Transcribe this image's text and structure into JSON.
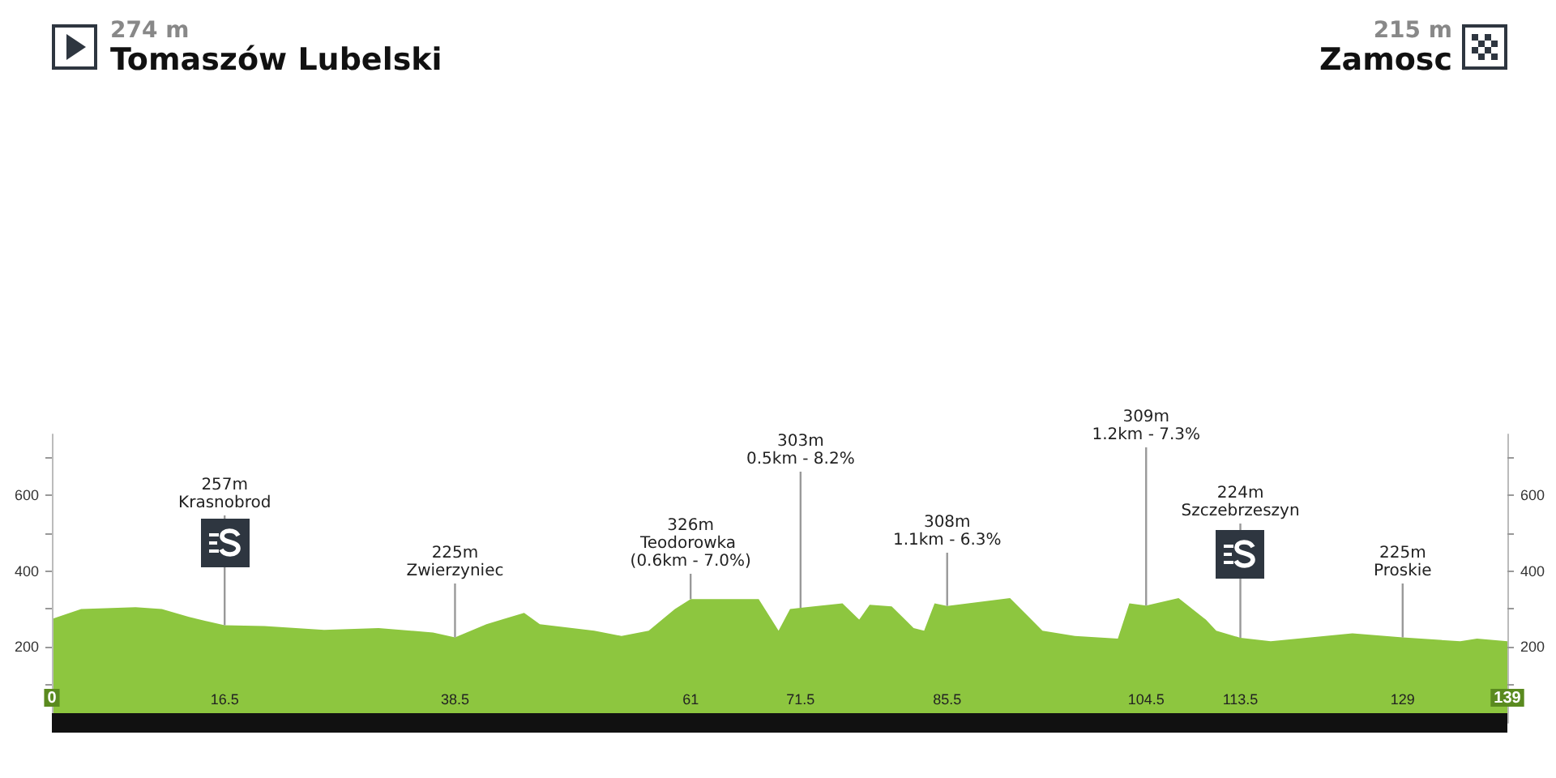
{
  "chart_data": {
    "type": "area",
    "color": "#8dc63f",
    "x": [
      0,
      2.8,
      8,
      10.5,
      13.1,
      16.5,
      20.3,
      26,
      31.2,
      36.4,
      38.5,
      41.5,
      45.1,
      46.6,
      51.8,
      54.4,
      57,
      59.5,
      61,
      67.5,
      69.4,
      70.5,
      71.5,
      75.5,
      77.1,
      78.1,
      80.2,
      82.3,
      83.3,
      84.3,
      85.5,
      91.5,
      94.6,
      97.7,
      101.8,
      102.9,
      104.5,
      107.6,
      110.2,
      111.2,
      113.5,
      116.4,
      124.2,
      129,
      134.5,
      136.1,
      139
    ],
    "values": [
      274,
      300,
      305,
      300,
      279,
      257,
      255,
      245,
      250,
      238,
      225,
      260,
      290,
      260,
      243,
      229,
      243,
      300,
      326,
      326,
      243,
      300,
      303,
      315,
      272,
      311,
      307,
      250,
      243,
      315,
      308,
      329,
      243,
      229,
      222,
      315,
      309,
      329,
      272,
      243,
      224,
      215,
      236,
      225,
      215,
      222,
      215
    ],
    "xlim": [
      0,
      139
    ],
    "xticks": [
      0,
      16.5,
      38.5,
      61,
      71.5,
      85.5,
      104.5,
      113.5,
      129,
      139
    ],
    "ylim": [
      0,
      760
    ],
    "yticks": [
      {
        "value": 100,
        "label": null
      },
      200,
      {
        "value": 300,
        "label": null
      },
      400,
      {
        "value": 500,
        "label": null
      },
      600,
      {
        "value": 700,
        "label": null
      }
    ],
    "y2lim": [
      0,
      760
    ],
    "y2ticks": [
      {
        "value": 100,
        "label": null
      },
      200,
      {
        "value": 300,
        "label": null
      },
      400,
      {
        "value": 500,
        "label": null
      },
      600,
      {
        "value": 700,
        "label": null
      }
    ],
    "grid": false,
    "marker": "none",
    "annotations": [
      {
        "text": "257m\nKrasnobrod",
        "x": 16.5,
        "y": 257
      },
      {
        "text": "225m\nZwierzyniec",
        "x": 38.5,
        "y": 225
      },
      {
        "text": "326m\nTeodorowka (0.6km - 7.0%)",
        "x": 61,
        "y": 326
      },
      {
        "text": "303m\n0.5km - 8.2%",
        "x": 71.5,
        "y": 303
      },
      {
        "text": "308m\n1.1km - 6.3%",
        "x": 85.5,
        "y": 308
      },
      {
        "text": "309m\n1.2km - 7.3%",
        "x": 104.5,
        "y": 309
      },
      {
        "text": "224m\nSzczebrzeszyn",
        "x": 113.5,
        "y": 224
      },
      {
        "text": "225m\nProskie",
        "x": 129,
        "y": 225
      },
      "274 m",
      "Tomaszów Lubelski",
      "215 m",
      "Zamosc"
    ]
  }
}
